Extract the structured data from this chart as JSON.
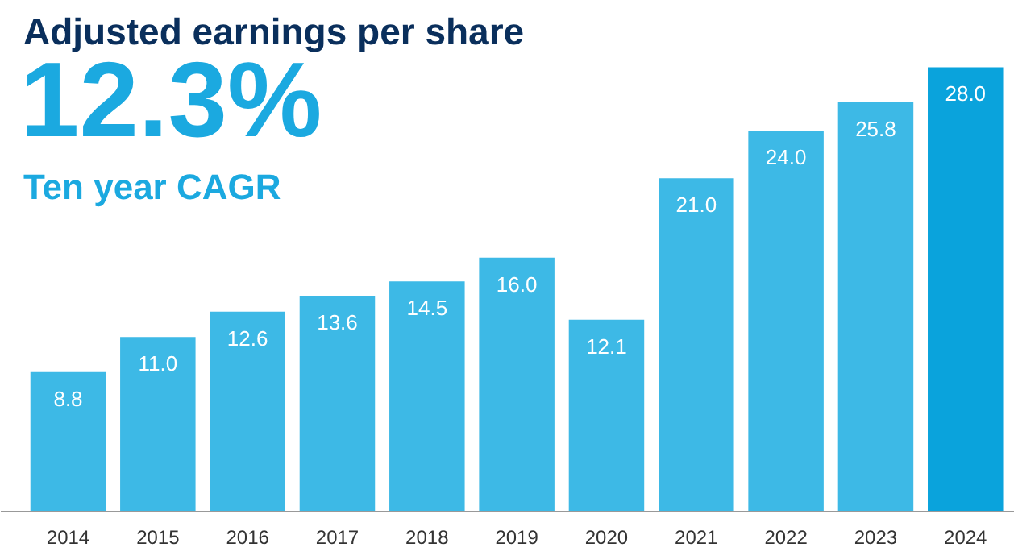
{
  "chart_data": {
    "type": "bar",
    "title": "Adjusted earnings per share",
    "subtitle": "Ten year CAGR",
    "annotations": [
      "12.3%"
    ],
    "categories": [
      "2014",
      "2015",
      "2016",
      "2017",
      "2018",
      "2019",
      "2020",
      "2021",
      "2022",
      "2023",
      "2024"
    ],
    "values": [
      8.8,
      11.0,
      12.6,
      13.6,
      14.5,
      16.0,
      12.1,
      21.0,
      24.0,
      25.8,
      28.0
    ],
    "value_labels": [
      "8.8",
      "11.0",
      "12.6",
      "13.6",
      "14.5",
      "16.0",
      "12.1",
      "21.0",
      "24.0",
      "25.8",
      "28.0"
    ],
    "colors": [
      "#3db9e6",
      "#3db9e6",
      "#3db9e6",
      "#3db9e6",
      "#3db9e6",
      "#3db9e6",
      "#3db9e6",
      "#3db9e6",
      "#3db9e6",
      "#3db9e6",
      "#0aa3dc"
    ],
    "grid": false
  }
}
